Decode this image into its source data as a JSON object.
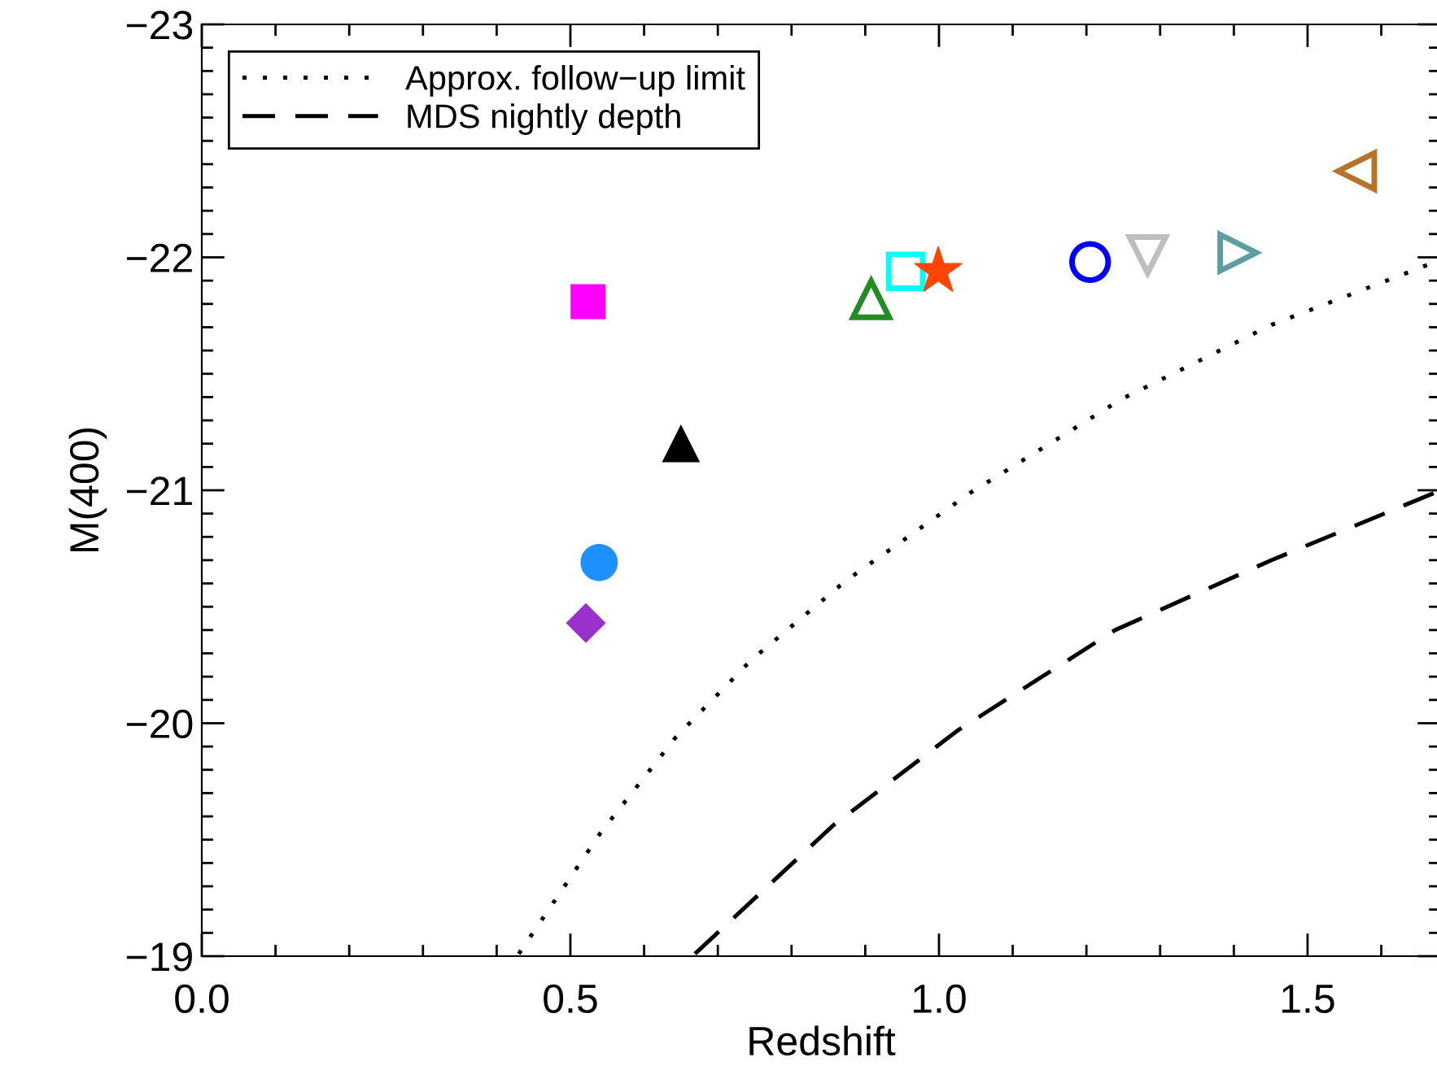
{
  "chart_data": {
    "type": "scatter",
    "xlabel": "Redshift",
    "ylabel": "M(400)",
    "xlim": [
      0,
      1.68
    ],
    "ylim": [
      -19,
      -23
    ],
    "xticks": [
      {
        "value": 0,
        "label": "0.0"
      },
      {
        "value": 0.5,
        "label": "0.5"
      },
      {
        "value": 1,
        "label": "1.0"
      },
      {
        "value": 1.5,
        "label": "1.5"
      }
    ],
    "yticks": [
      {
        "value": -19,
        "label": "−19"
      },
      {
        "value": -20,
        "label": "−20"
      },
      {
        "value": -21,
        "label": "−21"
      },
      {
        "value": -22,
        "label": "−22"
      },
      {
        "value": -23,
        "label": "−23"
      }
    ],
    "grid": false,
    "legend": "top left",
    "series": [
      {
        "x": [
          0.524
        ],
        "values": [
          -21.81
        ],
        "color": "#ff00ff",
        "marker": "square"
      },
      {
        "x": [
          0.65
        ],
        "values": [
          -21.2
        ],
        "color": "#000000",
        "marker": "triangle"
      },
      {
        "x": [
          0.539
        ],
        "values": [
          -20.69
        ],
        "color": "#1e90ff",
        "marker": "circle"
      },
      {
        "x": [
          0.521
        ],
        "values": [
          -20.43
        ],
        "color": "#9932cc",
        "marker": "diamond"
      },
      {
        "x": [
          0.908
        ],
        "values": [
          -21.82
        ],
        "color": "#228b22",
        "marker": "triangle"
      },
      {
        "x": [
          0.955
        ],
        "values": [
          -21.94
        ],
        "color": "#00ffff",
        "marker": "square"
      },
      {
        "x": [
          0.999
        ],
        "values": [
          -21.94
        ],
        "color": "#ff4500",
        "marker": "star"
      },
      {
        "x": [
          1.205
        ],
        "values": [
          -21.98
        ],
        "color": "#0000ff",
        "marker": "circle"
      },
      {
        "x": [
          1.283
        ],
        "values": [
          -22.01
        ],
        "color": "#bebebe",
        "marker": "triangle"
      },
      {
        "x": [
          1.406
        ],
        "values": [
          -22.02
        ],
        "color": "#5f9ea0",
        "marker": "triangle"
      },
      {
        "x": [
          1.566
        ],
        "values": [
          -22.37
        ],
        "color": "#b8732a",
        "marker": "triangle"
      },
      {
        "type": "line",
        "name": "Approx. follow−up limit",
        "color": "#000000",
        "line_style": "dotted",
        "x": [
          0.43,
          0.541,
          0.643,
          0.745,
          0.873,
          1.043,
          1.247,
          1.451,
          1.673
        ],
        "values": [
          -19.01,
          -19.53,
          -19.94,
          -20.27,
          -20.61,
          -20.99,
          -21.39,
          -21.71,
          -21.98
        ]
      },
      {
        "type": "line",
        "name": "MDS nightly depth",
        "color": "#000000",
        "line_style": "dashed",
        "x": [
          0.669,
          0.856,
          1.026,
          1.239,
          1.451,
          1.673
        ],
        "values": [
          -19.01,
          -19.56,
          -19.97,
          -20.4,
          -20.7,
          -20.99
        ]
      }
    ]
  }
}
